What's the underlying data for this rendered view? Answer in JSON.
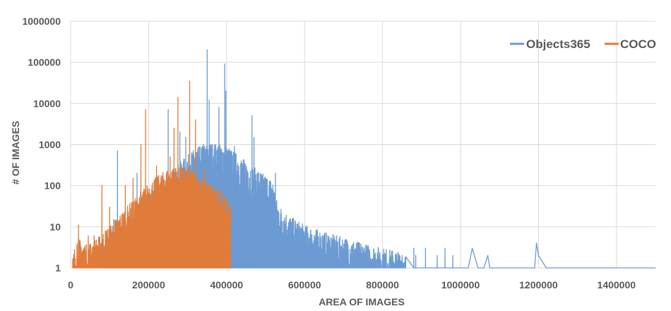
{
  "chart_data": {
    "type": "line",
    "title": "",
    "xlabel": "AREA OF IMAGES",
    "ylabel": "# OF IMAGES",
    "xlim": [
      0,
      1500000
    ],
    "ylim": [
      1,
      1000000
    ],
    "yscale": "log",
    "grid": true,
    "legend_position": "top-right",
    "x_ticks": [
      "0",
      "200000",
      "400000",
      "600000",
      "800000",
      "1000000",
      "1200000",
      "1400000"
    ],
    "y_ticks": [
      "1",
      "10",
      "100",
      "1000",
      "10000",
      "100000",
      "1000000"
    ],
    "series": [
      {
        "name": "Objects365",
        "color": "#6b9bd2",
        "envelope": [
          {
            "x": 80000,
            "y": 2
          },
          {
            "x": 120000,
            "y": 5
          },
          {
            "x": 160000,
            "y": 12
          },
          {
            "x": 200000,
            "y": 30
          },
          {
            "x": 240000,
            "y": 80
          },
          {
            "x": 280000,
            "y": 200
          },
          {
            "x": 320000,
            "y": 450
          },
          {
            "x": 360000,
            "y": 600
          },
          {
            "x": 400000,
            "y": 500
          },
          {
            "x": 440000,
            "y": 250
          },
          {
            "x": 480000,
            "y": 130
          },
          {
            "x": 520000,
            "y": 70
          },
          {
            "x": 530000,
            "y": 20
          },
          {
            "x": 560000,
            "y": 10
          },
          {
            "x": 600000,
            "y": 6
          },
          {
            "x": 650000,
            "y": 4
          },
          {
            "x": 700000,
            "y": 3
          },
          {
            "x": 760000,
            "y": 2
          },
          {
            "x": 820000,
            "y": 1.5
          },
          {
            "x": 860000,
            "y": 1.2
          }
        ],
        "spikes": [
          {
            "x": 110000,
            "y": 15
          },
          {
            "x": 120000,
            "y": 700
          },
          {
            "x": 170000,
            "y": 200
          },
          {
            "x": 250000,
            "y": 7000
          },
          {
            "x": 280000,
            "y": 2000
          },
          {
            "x": 295000,
            "y": 1500
          },
          {
            "x": 340000,
            "y": 1000
          },
          {
            "x": 350000,
            "y": 200000
          },
          {
            "x": 355000,
            "y": 12000
          },
          {
            "x": 380000,
            "y": 8000
          },
          {
            "x": 395000,
            "y": 90000
          },
          {
            "x": 398000,
            "y": 20000
          },
          {
            "x": 420000,
            "y": 900
          },
          {
            "x": 465000,
            "y": 5000
          },
          {
            "x": 470000,
            "y": 1500
          },
          {
            "x": 525000,
            "y": 200
          },
          {
            "x": 590000,
            "y": 3
          },
          {
            "x": 700000,
            "y": 3
          },
          {
            "x": 850000,
            "y": 2
          },
          {
            "x": 880000,
            "y": 3
          },
          {
            "x": 885000,
            "y": 2
          },
          {
            "x": 910000,
            "y": 3
          },
          {
            "x": 940000,
            "y": 2
          },
          {
            "x": 960000,
            "y": 3
          },
          {
            "x": 980000,
            "y": 2
          }
        ],
        "tail": [
          {
            "x": 1010000,
            "y": 1
          },
          {
            "x": 1020000,
            "y": 1
          },
          {
            "x": 1030000,
            "y": 3
          },
          {
            "x": 1045000,
            "y": 1
          },
          {
            "x": 1060000,
            "y": 1
          },
          {
            "x": 1070000,
            "y": 2
          },
          {
            "x": 1075000,
            "y": 1
          },
          {
            "x": 1190000,
            "y": 1
          },
          {
            "x": 1195000,
            "y": 4
          },
          {
            "x": 1200000,
            "y": 2
          },
          {
            "x": 1220000,
            "y": 1
          },
          {
            "x": 1500000,
            "y": 1
          }
        ]
      },
      {
        "name": "COCO",
        "color": "#e07b39",
        "envelope": [
          {
            "x": 5000,
            "y": 1
          },
          {
            "x": 15000,
            "y": 3
          },
          {
            "x": 40000,
            "y": 2
          },
          {
            "x": 70000,
            "y": 3
          },
          {
            "x": 100000,
            "y": 6
          },
          {
            "x": 130000,
            "y": 12
          },
          {
            "x": 160000,
            "y": 25
          },
          {
            "x": 190000,
            "y": 50
          },
          {
            "x": 220000,
            "y": 90
          },
          {
            "x": 250000,
            "y": 140
          },
          {
            "x": 280000,
            "y": 160
          },
          {
            "x": 300000,
            "y": 150
          },
          {
            "x": 330000,
            "y": 100
          },
          {
            "x": 360000,
            "y": 60
          },
          {
            "x": 390000,
            "y": 35
          },
          {
            "x": 410000,
            "y": 20
          }
        ],
        "spikes": [
          {
            "x": 20000,
            "y": 11
          },
          {
            "x": 45000,
            "y": 6
          },
          {
            "x": 60000,
            "y": 6
          },
          {
            "x": 80000,
            "y": 100
          },
          {
            "x": 100000,
            "y": 30
          },
          {
            "x": 140000,
            "y": 100
          },
          {
            "x": 160000,
            "y": 150
          },
          {
            "x": 180000,
            "y": 1000
          },
          {
            "x": 192000,
            "y": 7000
          },
          {
            "x": 220000,
            "y": 300
          },
          {
            "x": 255000,
            "y": 500
          },
          {
            "x": 265000,
            "y": 2500
          },
          {
            "x": 275000,
            "y": 14000
          },
          {
            "x": 305000,
            "y": 35000
          },
          {
            "x": 320000,
            "y": 4000
          },
          {
            "x": 345000,
            "y": 250
          },
          {
            "x": 390000,
            "y": 80
          }
        ]
      }
    ]
  }
}
